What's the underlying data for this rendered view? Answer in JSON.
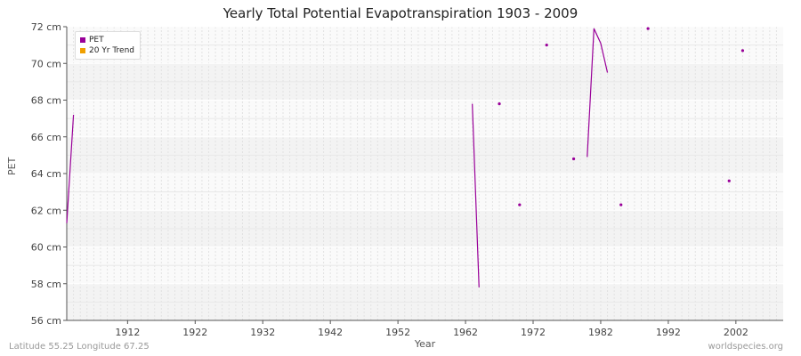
{
  "chart_data": {
    "type": "line",
    "title": "Yearly Total Potential Evapotranspiration 1903 - 2009",
    "xlabel": "Year",
    "ylabel": "PET",
    "y_unit": "cm",
    "xlim": [
      1903,
      2009
    ],
    "ylim": [
      56,
      72
    ],
    "y_ticks": [
      "56 cm",
      "58 cm",
      "60 cm",
      "62 cm",
      "64 cm",
      "66 cm",
      "68 cm",
      "70 cm",
      "72 cm"
    ],
    "x_ticks": [
      "1912",
      "1922",
      "1932",
      "1942",
      "1952",
      "1962",
      "1972",
      "1982",
      "1992",
      "2002"
    ],
    "legend": {
      "placement": "top-left",
      "entries": [
        "PET",
        "20 Yr Trend"
      ]
    },
    "series": [
      {
        "name": "PET",
        "color": "#990099",
        "segments": [
          [
            [
              1903,
              61.3
            ],
            [
              1904,
              67.2
            ]
          ],
          [
            [
              1963,
              67.8
            ],
            [
              1964,
              57.8
            ]
          ],
          [
            [
              1980,
              64.9
            ],
            [
              1981,
              71.9
            ],
            [
              1982,
              71.1
            ],
            [
              1983,
              69.5
            ]
          ]
        ],
        "points": [
          [
            1967,
            67.8
          ],
          [
            1970,
            62.3
          ],
          [
            1974,
            71.0
          ],
          [
            1978,
            64.8
          ],
          [
            1985,
            62.3
          ],
          [
            1989,
            71.9
          ],
          [
            2001,
            63.6
          ],
          [
            2003,
            70.7
          ]
        ]
      },
      {
        "name": "20 Yr Trend",
        "color": "#f0a000",
        "segments": [],
        "points": []
      }
    ],
    "grid": true
  },
  "footer": {
    "location": "Latitude 55.25 Longitude 67.25",
    "source": "worldspecies.org"
  }
}
